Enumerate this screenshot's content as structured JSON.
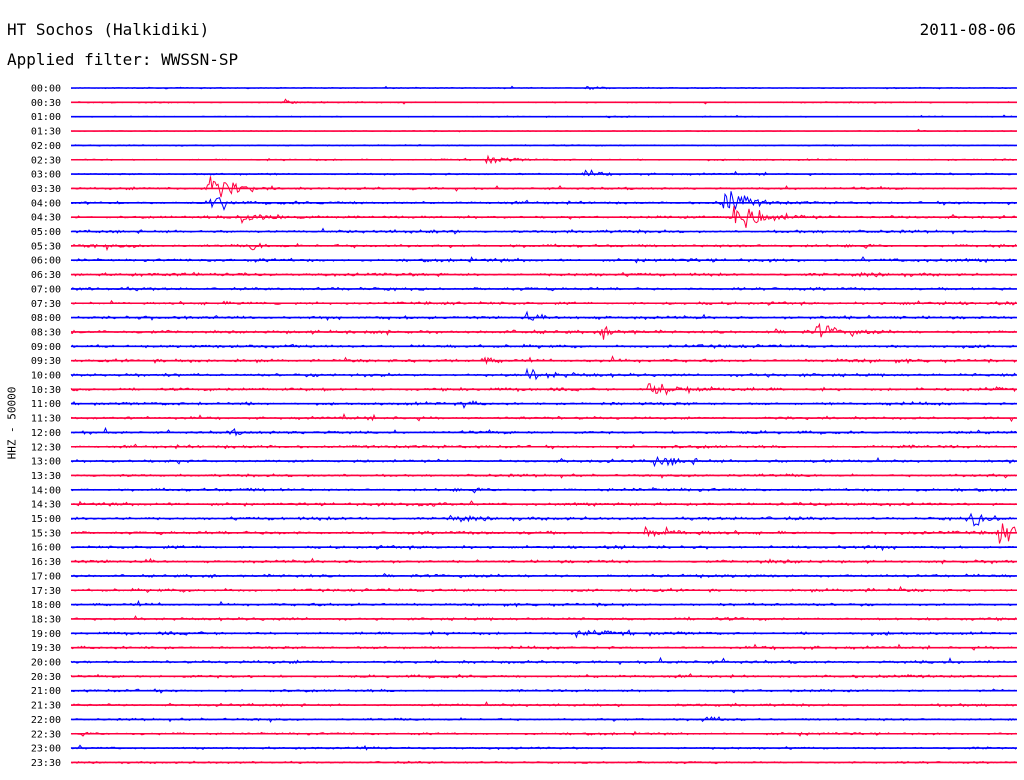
{
  "header": {
    "station": "HT Sochos (Halkidiki)",
    "date": "2011-08-06",
    "filter": "Applied filter: WWSSN-SP"
  },
  "colors": {
    "even_trace": "#0000ff",
    "odd_trace": "#ff0040"
  },
  "chart_data": {
    "type": "line",
    "title": "HT Sochos (Halkidiki)",
    "subtitle": "Applied filter: WWSSN-SP",
    "ylabel": "HHZ - 50000",
    "xlabel": "",
    "rows": [
      "00:00",
      "00:30",
      "01:00",
      "01:30",
      "02:00",
      "02:30",
      "03:00",
      "03:30",
      "04:00",
      "04:30",
      "05:00",
      "05:30",
      "06:00",
      "06:30",
      "07:00",
      "07:30",
      "08:00",
      "08:30",
      "09:00",
      "09:30",
      "10:00",
      "10:30",
      "11:00",
      "11:30",
      "12:00",
      "12:30",
      "13:00",
      "13:30",
      "14:00",
      "14:30",
      "15:00",
      "15:30",
      "16:00",
      "16:30",
      "17:00",
      "17:30",
      "18:00",
      "18:30",
      "19:00",
      "19:30",
      "20:00",
      "20:30",
      "21:00",
      "21:30",
      "22:00",
      "22:30",
      "23:00",
      "23:30"
    ],
    "row_duration_minutes": 30,
    "noise_amplitude": [
      0.12,
      0.12,
      0.1,
      0.1,
      0.12,
      0.15,
      0.18,
      0.22,
      0.25,
      0.25,
      0.28,
      0.28,
      0.3,
      0.3,
      0.28,
      0.28,
      0.3,
      0.3,
      0.3,
      0.3,
      0.3,
      0.3,
      0.28,
      0.26,
      0.28,
      0.28,
      0.26,
      0.26,
      0.28,
      0.28,
      0.3,
      0.3,
      0.28,
      0.28,
      0.28,
      0.28,
      0.26,
      0.26,
      0.28,
      0.26,
      0.28,
      0.26,
      0.24,
      0.24,
      0.22,
      0.22,
      0.2,
      0.2
    ],
    "events": [
      {
        "row": "00:00",
        "minute": 16.3,
        "amplitude": 0.8,
        "duration": 0.5
      },
      {
        "row": "00:30",
        "minute": 6.8,
        "amplitude": 0.5,
        "duration": 0.4
      },
      {
        "row": "01:00",
        "minute": 17.0,
        "amplitude": 0.4,
        "duration": 0.8
      },
      {
        "row": "02:30",
        "minute": 13.2,
        "amplitude": 0.9,
        "duration": 1.0
      },
      {
        "row": "03:00",
        "minute": 16.3,
        "amplitude": 0.8,
        "duration": 0.8
      },
      {
        "row": "03:30",
        "minute": 4.3,
        "amplitude": 3.0,
        "duration": 1.5
      },
      {
        "row": "04:00",
        "minute": 4.5,
        "amplitude": 6.0,
        "duration": 0.4
      },
      {
        "row": "04:00",
        "minute": 20.7,
        "amplitude": 3.5,
        "duration": 1.0
      },
      {
        "row": "04:30",
        "minute": 5.3,
        "amplitude": 1.5,
        "duration": 2.0
      },
      {
        "row": "04:30",
        "minute": 21.0,
        "amplitude": 3.5,
        "duration": 1.6
      },
      {
        "row": "05:30",
        "minute": 5.7,
        "amplitude": 0.9,
        "duration": 0.6
      },
      {
        "row": "08:00",
        "minute": 14.4,
        "amplitude": 1.4,
        "duration": 0.5
      },
      {
        "row": "08:30",
        "minute": 16.8,
        "amplitude": 1.0,
        "duration": 1.4
      },
      {
        "row": "08:30",
        "minute": 23.6,
        "amplitude": 1.4,
        "duration": 1.6
      },
      {
        "row": "09:30",
        "minute": 13.0,
        "amplitude": 0.8,
        "duration": 0.8
      },
      {
        "row": "10:00",
        "minute": 14.5,
        "amplitude": 0.8,
        "duration": 1.4
      },
      {
        "row": "10:30",
        "minute": 18.3,
        "amplitude": 1.3,
        "duration": 2.0
      },
      {
        "row": "11:00",
        "minute": 12.4,
        "amplitude": 0.9,
        "duration": 0.5
      },
      {
        "row": "12:00",
        "minute": 5.0,
        "amplitude": 0.7,
        "duration": 0.5
      },
      {
        "row": "13:00",
        "minute": 18.5,
        "amplitude": 0.9,
        "duration": 2.4
      },
      {
        "row": "14:30",
        "minute": 11.0,
        "amplitude": 0.8,
        "duration": 0.8
      },
      {
        "row": "15:00",
        "minute": 12.0,
        "amplitude": 0.9,
        "duration": 0.7
      },
      {
        "row": "15:00",
        "minute": 28.5,
        "amplitude": 1.4,
        "duration": 0.8
      },
      {
        "row": "15:30",
        "minute": 18.2,
        "amplitude": 1.0,
        "duration": 1.4
      },
      {
        "row": "15:30",
        "minute": 29.4,
        "amplitude": 2.2,
        "duration": 1.4
      },
      {
        "row": "19:00",
        "minute": 16.0,
        "amplitude": 0.6,
        "duration": 1.4
      },
      {
        "row": "22:00",
        "minute": 20.0,
        "amplitude": 0.6,
        "duration": 1.0
      },
      {
        "row": "23:00",
        "minute": 9.3,
        "amplitude": 0.8,
        "duration": 0.4
      }
    ]
  }
}
